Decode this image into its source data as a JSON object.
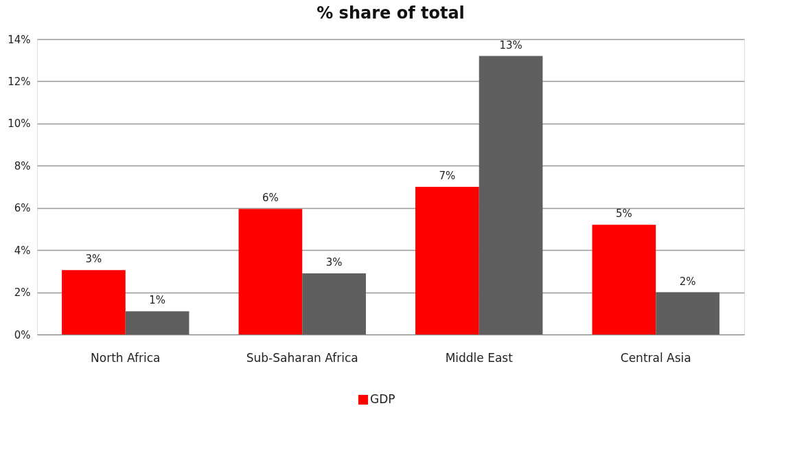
{
  "chart_data": {
    "type": "bar",
    "title": "% share of total",
    "categories": [
      "North Africa",
      "Sub-Saharan Africa",
      "Middle East",
      "Central Asia"
    ],
    "series": [
      {
        "name": "GDP",
        "color": "#ff0000",
        "values": [
          3.05,
          5.95,
          7.0,
          5.2
        ],
        "value_labels": [
          "3%",
          "6%",
          "7%",
          "5%"
        ]
      },
      {
        "color": "#5f5f5f",
        "values": [
          1.1,
          2.9,
          13.2,
          2.0
        ],
        "value_labels": [
          "1%",
          "3%",
          "13%",
          "2%"
        ]
      }
    ],
    "ylim": [
      0,
      14
    ],
    "yticks": [
      {
        "value": 0,
        "label": "0%"
      },
      {
        "value": 2,
        "label": "2%"
      },
      {
        "value": 4,
        "label": "4%"
      },
      {
        "value": 6,
        "label": "6%"
      },
      {
        "value": 8,
        "label": "8%"
      },
      {
        "value": 10,
        "label": "10%"
      },
      {
        "value": 12,
        "label": "12%"
      },
      {
        "value": 14,
        "label": "14%"
      }
    ],
    "grid": "y",
    "legend": "bottom"
  }
}
